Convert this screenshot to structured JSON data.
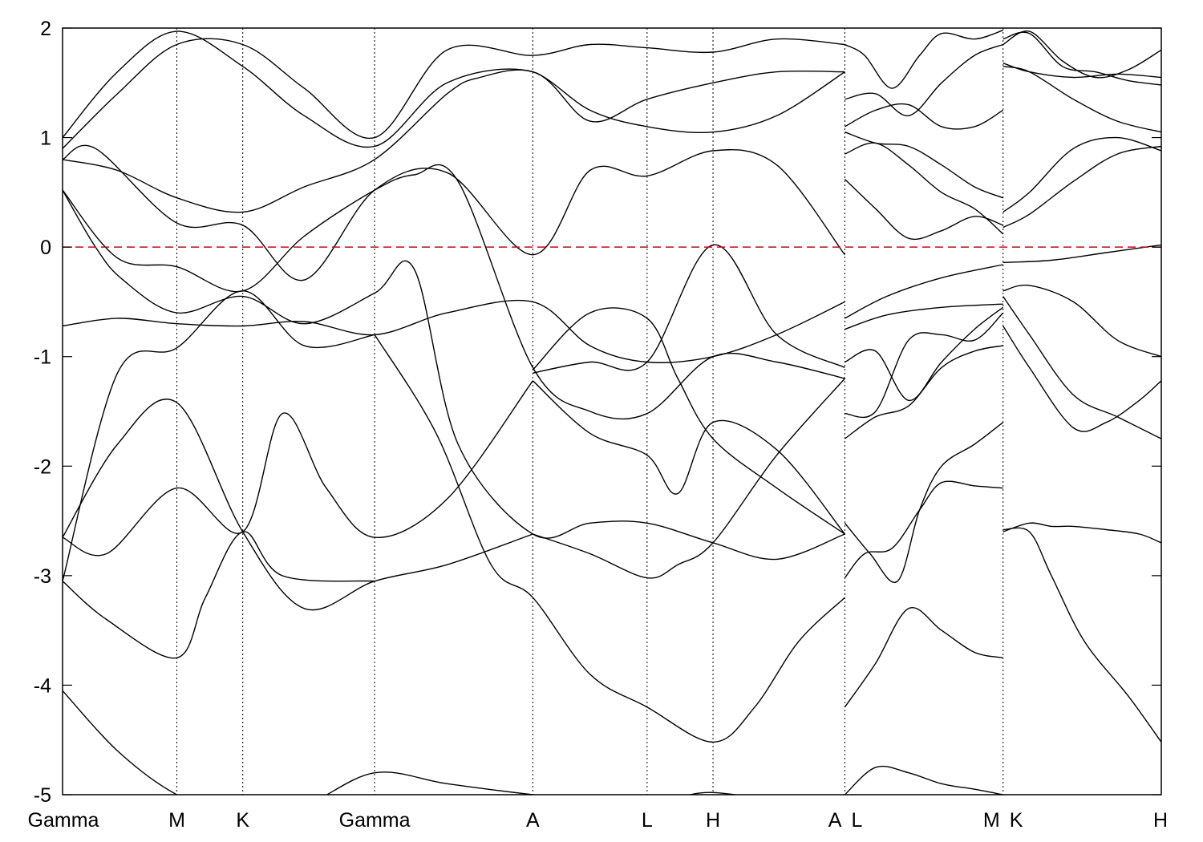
{
  "chart_data": {
    "type": "line",
    "title": "",
    "xlabel": "",
    "ylabel": "",
    "ylim": [
      -5,
      2
    ],
    "yticks": [
      2,
      1,
      0,
      -1,
      -2,
      -3,
      -4,
      -5
    ],
    "ytick_labels": [
      "2",
      "1",
      "0",
      "-1",
      "-2",
      "-3",
      "-4",
      "-5"
    ],
    "grid": false,
    "x_range": [
      0,
      10
    ],
    "kpoints": [
      {
        "label": "Gamma",
        "x": 0
      },
      {
        "label": "M",
        "x": 1.04
      },
      {
        "label": "K",
        "x": 1.64
      },
      {
        "label": "Gamma",
        "x": 2.84
      },
      {
        "label": "A",
        "x": 4.28
      },
      {
        "label": "L",
        "x": 5.32
      },
      {
        "label": "H",
        "x": 5.92
      },
      {
        "label": "A",
        "x": 7.12
      },
      {
        "label": "L",
        "x": 7.12
      },
      {
        "label": "M",
        "x": 8.56
      },
      {
        "label": "K",
        "x": 8.56
      },
      {
        "label": "H",
        "x": 10
      }
    ],
    "fermi_level": 0,
    "fermi_color": "#e00000",
    "band_color": "#000000",
    "series": [
      {
        "x": [
          0,
          0.5,
          1.04,
          1.64,
          2.2,
          2.84,
          3.5,
          4.28,
          4.8,
          5.32,
          5.6,
          5.92,
          6.5,
          7.12
        ],
        "y": [
          -4.05,
          -4.6,
          -5.0,
          -5.2,
          -5.1,
          -4.8,
          -4.9,
          -5.0,
          -5.05,
          -5.05,
          -5.02,
          -4.98,
          -5.05,
          -5.1
        ]
      },
      {
        "x": [
          0,
          0.4,
          1.04,
          1.3,
          1.64,
          2.0,
          2.84
        ],
        "y": [
          -3.05,
          -3.4,
          -3.75,
          -3.2,
          -2.6,
          -3.0,
          -3.05
        ]
      },
      {
        "x": [
          0,
          0.5,
          1.04,
          1.64,
          2.2,
          2.84,
          3.5,
          4.28
        ],
        "y": [
          -2.65,
          -1.8,
          -1.42,
          -2.6,
          -3.3,
          -3.05,
          -2.9,
          -2.62
        ]
      },
      {
        "x": [
          0,
          0.4,
          1.04,
          1.64,
          2.0,
          2.4,
          2.84,
          3.5,
          4.28
        ],
        "y": [
          -2.65,
          -2.8,
          -2.2,
          -2.6,
          -1.52,
          -2.2,
          -2.65,
          -2.3,
          -1.22
        ]
      },
      {
        "x": [
          0,
          0.5,
          1.04,
          1.64,
          2.2,
          2.84
        ],
        "y": [
          -3.05,
          -1.15,
          -0.92,
          -0.4,
          -0.9,
          -0.8
        ]
      },
      {
        "x": [
          0,
          0.5,
          1.04,
          1.64,
          2.2,
          2.84,
          3.5,
          4.28,
          4.8,
          5.32,
          5.92,
          6.5,
          7.12
        ],
        "y": [
          -0.72,
          -0.65,
          -0.7,
          -0.72,
          -0.68,
          -0.8,
          -0.6,
          -0.5,
          -0.9,
          -1.05,
          -1.0,
          -0.8,
          -0.5
        ]
      },
      {
        "x": [
          0,
          0.3,
          0.55,
          1.04,
          1.64,
          2.2,
          2.84,
          3.2,
          3.6,
          4.28,
          4.8,
          5.32,
          5.92,
          6.5,
          7.12
        ],
        "y": [
          0.52,
          0.0,
          -0.3,
          -0.6,
          -0.45,
          -0.7,
          -0.42,
          -0.2,
          -1.8,
          -2.62,
          -2.52,
          -2.52,
          -2.7,
          -2.85,
          -2.62
        ]
      },
      {
        "x": [
          0,
          0.5,
          1.04,
          1.64,
          2.2,
          2.84,
          3.2,
          3.6,
          4.28,
          4.8,
          5.32,
          5.92,
          6.5,
          7.12
        ],
        "y": [
          0.52,
          -0.1,
          -0.18,
          -0.4,
          0.1,
          0.52,
          0.66,
          0.6,
          -1.1,
          -1.5,
          -1.52,
          -1.0,
          -1.05,
          -1.2
        ]
      },
      {
        "x": [
          0,
          0.5,
          1.04,
          1.64,
          2.2,
          2.84,
          3.5,
          3.8,
          4.28,
          4.8,
          5.32,
          5.92,
          6.5,
          7.12
        ],
        "y": [
          0.8,
          0.7,
          0.45,
          0.32,
          0.55,
          0.8,
          1.4,
          1.55,
          1.6,
          1.25,
          1.1,
          1.05,
          1.2,
          1.6
        ]
      },
      {
        "x": [
          0,
          0.3,
          1.04,
          1.64,
          2.2,
          2.84,
          3.5,
          4.28,
          4.8,
          5.32,
          5.92,
          6.5,
          7.12
        ],
        "y": [
          0.8,
          0.9,
          0.22,
          0.2,
          -0.3,
          0.52,
          0.68,
          -0.07,
          0.7,
          0.65,
          0.88,
          0.75,
          -0.07
        ]
      },
      {
        "x": [
          0,
          0.5,
          1.04,
          1.64,
          2.2,
          2.84,
          3.5,
          4.28,
          4.8,
          5.32,
          5.92,
          6.5,
          7.12
        ],
        "y": [
          1.0,
          1.6,
          1.97,
          1.65,
          1.2,
          0.92,
          1.5,
          1.6,
          1.15,
          1.35,
          1.5,
          1.6,
          1.6
        ]
      },
      {
        "x": [
          0,
          0.5,
          1.04,
          1.64,
          2.2,
          2.84,
          3.5,
          4.28,
          4.8,
          5.32,
          5.92,
          6.5,
          7.12
        ],
        "y": [
          0.9,
          1.4,
          1.85,
          1.85,
          1.45,
          1.0,
          1.8,
          1.75,
          1.85,
          1.82,
          1.78,
          1.9,
          1.85
        ]
      },
      {
        "x": [
          2.84,
          3.4,
          3.9,
          4.28,
          4.8,
          5.32,
          5.92,
          6.3,
          6.7,
          7.12
        ],
        "y": [
          -0.8,
          -1.7,
          -2.9,
          -3.2,
          -3.9,
          -4.2,
          -4.52,
          -4.2,
          -3.6,
          -3.2
        ]
      },
      {
        "x": [
          4.28,
          4.8,
          5.32,
          5.6,
          5.92,
          6.5,
          7.12
        ],
        "y": [
          -1.22,
          -1.7,
          -1.9,
          -2.25,
          -1.6,
          -1.85,
          -2.62
        ]
      },
      {
        "x": [
          4.28,
          4.8,
          5.32,
          5.6,
          5.92,
          6.5,
          7.12
        ],
        "y": [
          -2.62,
          -2.8,
          -3.02,
          -2.9,
          -2.7,
          -1.9,
          -1.2
        ]
      },
      {
        "x": [
          4.28,
          4.8,
          5.32,
          5.92,
          6.5,
          7.12
        ],
        "y": [
          -1.15,
          -1.05,
          -1.05,
          0.02,
          -0.8,
          -1.1
        ]
      },
      {
        "x": [
          4.28,
          4.8,
          5.32,
          5.6,
          5.92,
          6.5,
          7.12
        ],
        "y": [
          -1.12,
          -0.6,
          -0.65,
          -1.2,
          -1.75,
          -2.2,
          -2.62
        ]
      },
      {
        "x": [
          7.12,
          7.4,
          7.7,
          8.0,
          8.3,
          8.56
        ],
        "y": [
          -5.0,
          -4.75,
          -4.8,
          -4.9,
          -4.95,
          -5.0
        ]
      },
      {
        "x": [
          7.12,
          7.4,
          7.7,
          8.0,
          8.3,
          8.56
        ],
        "y": [
          -4.2,
          -3.8,
          -3.3,
          -3.5,
          -3.7,
          -3.75
        ]
      },
      {
        "x": [
          7.12,
          7.3,
          7.55,
          7.8,
          8.0,
          8.3,
          8.56
        ],
        "y": [
          -3.02,
          -2.8,
          -2.75,
          -2.4,
          -2.15,
          -2.18,
          -2.2
        ]
      },
      {
        "x": [
          7.12,
          7.35,
          7.6,
          7.8,
          8.0,
          8.3,
          8.56
        ],
        "y": [
          -2.52,
          -2.8,
          -3.05,
          -2.4,
          -2.0,
          -1.8,
          -1.6
        ]
      },
      {
        "x": [
          7.12,
          7.4,
          7.7,
          8.0,
          8.3,
          8.56
        ],
        "y": [
          -1.75,
          -1.55,
          -1.45,
          -1.1,
          -0.95,
          -0.9
        ]
      },
      {
        "x": [
          7.12,
          7.4,
          7.7,
          8.0,
          8.3,
          8.56
        ],
        "y": [
          -1.52,
          -1.5,
          -0.85,
          -0.8,
          -0.85,
          -0.6
        ]
      },
      {
        "x": [
          7.12,
          7.4,
          7.7,
          8.0,
          8.3,
          8.56
        ],
        "y": [
          -1.05,
          -0.95,
          -1.4,
          -1.05,
          -0.75,
          -0.55
        ]
      },
      {
        "x": [
          7.12,
          7.5,
          8.0,
          8.56
        ],
        "y": [
          -0.75,
          -0.62,
          -0.55,
          -0.52
        ]
      },
      {
        "x": [
          7.12,
          7.5,
          8.0,
          8.56
        ],
        "y": [
          -0.65,
          -0.45,
          -0.28,
          -0.16
        ]
      },
      {
        "x": [
          7.12,
          7.4,
          7.7,
          8.0,
          8.3,
          8.56
        ],
        "y": [
          0.62,
          0.35,
          0.08,
          0.15,
          0.28,
          0.2
        ]
      },
      {
        "x": [
          7.12,
          7.4,
          7.7,
          8.0,
          8.3,
          8.56
        ],
        "y": [
          0.85,
          0.95,
          0.75,
          0.5,
          0.35,
          0.12
        ]
      },
      {
        "x": [
          7.12,
          7.4,
          7.7,
          8.0,
          8.3,
          8.56
        ],
        "y": [
          1.05,
          0.95,
          0.92,
          0.75,
          0.55,
          0.45
        ]
      },
      {
        "x": [
          7.12,
          7.4,
          7.7,
          8.0,
          8.3,
          8.56
        ],
        "y": [
          1.1,
          1.25,
          1.3,
          1.1,
          1.1,
          1.25
        ]
      },
      {
        "x": [
          7.12,
          7.4,
          7.7,
          8.0,
          8.3,
          8.56
        ],
        "y": [
          1.35,
          1.4,
          1.2,
          1.5,
          1.75,
          1.85
        ]
      },
      {
        "x": [
          7.12,
          7.3,
          7.55,
          7.8,
          8.0,
          8.3,
          8.56
        ],
        "y": [
          1.85,
          1.75,
          1.45,
          1.75,
          1.95,
          1.9,
          1.98
        ]
      },
      {
        "x": [
          8.56,
          8.8,
          9.0,
          9.2,
          9.5,
          9.8,
          10
        ],
        "y": [
          -2.6,
          -2.52,
          -2.55,
          -2.55,
          -2.58,
          -2.62,
          -2.7
        ]
      },
      {
        "x": [
          8.56,
          8.8,
          9.0,
          9.3,
          9.7,
          10
        ],
        "y": [
          -2.58,
          -2.6,
          -3.0,
          -3.6,
          -4.1,
          -4.52
        ]
      },
      {
        "x": [
          8.56,
          8.8,
          9.2,
          9.5,
          9.8,
          10
        ],
        "y": [
          -0.72,
          -1.1,
          -1.65,
          -1.6,
          -1.4,
          -1.22
        ]
      },
      {
        "x": [
          8.56,
          8.8,
          9.2,
          9.6,
          10
        ],
        "y": [
          -0.45,
          -0.8,
          -1.35,
          -1.55,
          -1.75
        ]
      },
      {
        "x": [
          8.56,
          8.8,
          9.2,
          9.6,
          10
        ],
        "y": [
          -0.4,
          -0.35,
          -0.5,
          -0.85,
          -1.0
        ]
      },
      {
        "x": [
          8.56,
          9.0,
          9.5,
          10
        ],
        "y": [
          -0.14,
          -0.12,
          -0.05,
          0.02
        ]
      },
      {
        "x": [
          8.56,
          8.8,
          9.2,
          9.6,
          10
        ],
        "y": [
          0.18,
          0.3,
          0.6,
          0.85,
          0.92
        ]
      },
      {
        "x": [
          8.56,
          8.8,
          9.2,
          9.6,
          10
        ],
        "y": [
          0.32,
          0.5,
          0.9,
          1.0,
          0.88
        ]
      },
      {
        "x": [
          8.56,
          8.8,
          9.2,
          9.6,
          10
        ],
        "y": [
          1.65,
          1.6,
          1.35,
          1.15,
          1.05
        ]
      },
      {
        "x": [
          8.56,
          8.8,
          9.2,
          9.6,
          10
        ],
        "y": [
          1.68,
          1.6,
          1.55,
          1.58,
          1.55
        ]
      },
      {
        "x": [
          8.56,
          8.8,
          9.1,
          9.4,
          9.7,
          10
        ],
        "y": [
          1.85,
          1.97,
          1.7,
          1.55,
          1.62,
          1.8
        ]
      },
      {
        "x": [
          8.56,
          8.8,
          9.1,
          9.4,
          9.7,
          10
        ],
        "y": [
          1.9,
          1.95,
          1.65,
          1.6,
          1.52,
          1.48
        ]
      }
    ]
  }
}
